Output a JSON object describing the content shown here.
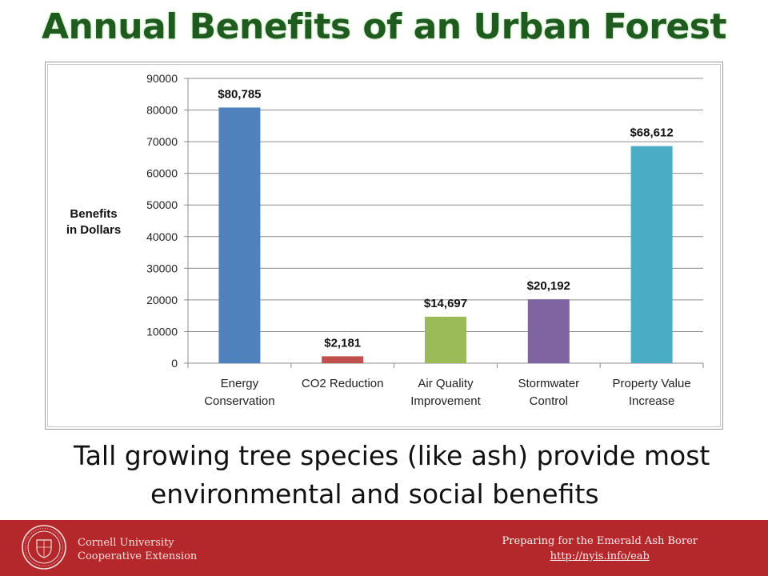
{
  "slide": {
    "title": "Annual Benefits of an Urban Forest",
    "caption_line1": "Tall growing tree species (like ash) provide most",
    "caption_line2": "environmental and social benefits"
  },
  "footer": {
    "org_line1": "Cornell University",
    "org_line2": "Cooperative Extension",
    "promo_line": "Preparing for the Emerald Ash Borer",
    "promo_link": "http://nyis.info/eab"
  },
  "colors": {
    "title": "#1f5a1f",
    "footer_bg": "#b4272b"
  },
  "chart_data": {
    "type": "bar",
    "ylabel_lines": [
      "Benefits",
      "in Dollars"
    ],
    "ylim": [
      0,
      90000
    ],
    "yticks": [
      0,
      10000,
      20000,
      30000,
      40000,
      50000,
      60000,
      70000,
      80000,
      90000
    ],
    "grid": true,
    "categories": [
      [
        "Energy",
        "Conservation"
      ],
      [
        "CO2 Reduction"
      ],
      [
        "Air Quality",
        "Improvement"
      ],
      [
        "Stormwater",
        "Control"
      ],
      [
        "Property Value",
        "Increase"
      ]
    ],
    "values": [
      80785,
      2181,
      14697,
      20192,
      68612
    ],
    "data_labels": [
      "$80,785",
      "$2,181",
      "$14,697",
      "$20,192",
      "$68,612"
    ],
    "bar_colors": [
      "#4f81bd",
      "#c0504d",
      "#9bbb59",
      "#8064a2",
      "#4bacc6"
    ]
  }
}
